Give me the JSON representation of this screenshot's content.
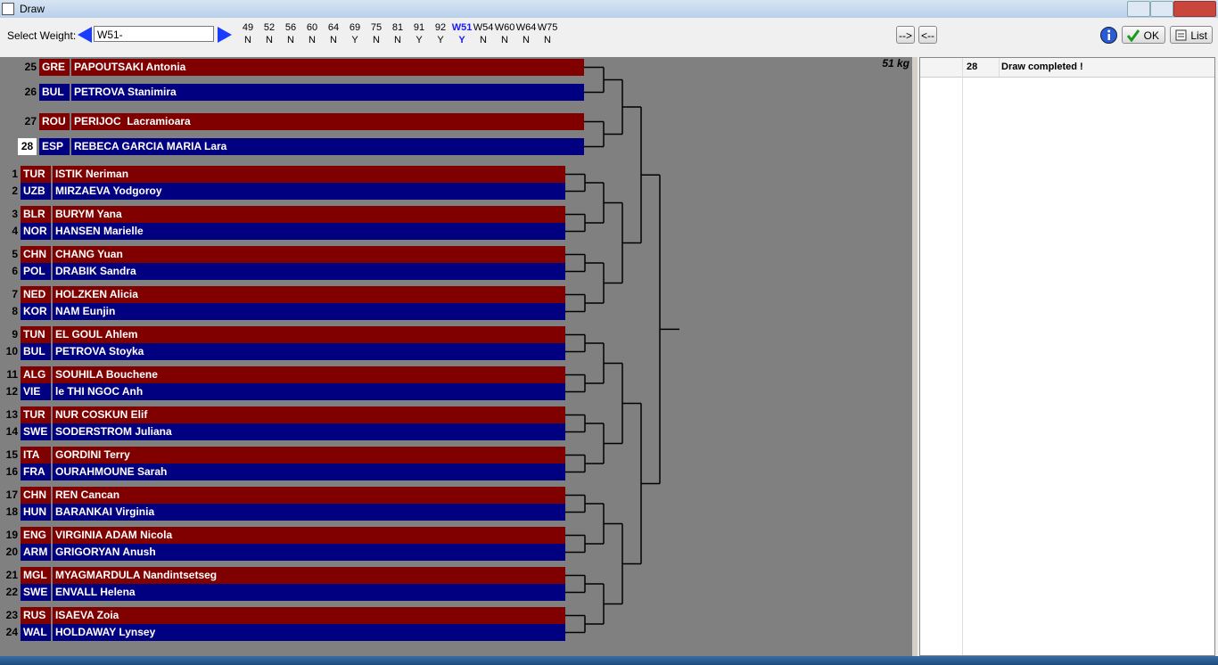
{
  "window": {
    "title": "Draw"
  },
  "toolbar": {
    "select_label": "Select Weight:",
    "select_value": "W51-",
    "weights": [
      {
        "label": "49",
        "flag": "N"
      },
      {
        "label": "52",
        "flag": "N"
      },
      {
        "label": "56",
        "flag": "N"
      },
      {
        "label": "60",
        "flag": "N"
      },
      {
        "label": "64",
        "flag": "N"
      },
      {
        "label": "69",
        "flag": "Y"
      },
      {
        "label": "75",
        "flag": "N"
      },
      {
        "label": "81",
        "flag": "N"
      },
      {
        "label": "91",
        "flag": "Y"
      },
      {
        "label": "92",
        "flag": "Y"
      },
      {
        "label": "W51",
        "flag": "Y"
      },
      {
        "label": "W54",
        "flag": "N"
      },
      {
        "label": "W60",
        "flag": "N"
      },
      {
        "label": "W64",
        "flag": "N"
      },
      {
        "label": "W75",
        "flag": "N"
      }
    ],
    "selected_weight": 10,
    "buttons": {
      "next": "-->",
      "prev": "<--",
      "ok": "OK",
      "list": "List"
    }
  },
  "draw": {
    "weight_label": "51 kg",
    "prelims": [
      {
        "num": 25,
        "country": "GRE",
        "name": "PAPOUTSAKI Antonia"
      },
      {
        "num": 26,
        "country": "BUL",
        "name": "PETROVA Stanimira"
      },
      {
        "num": 27,
        "country": "ROU",
        "name": "PERIJOC  Lacramioara"
      },
      {
        "num": 28,
        "country": "ESP",
        "name": "REBECA GARCIA MARIA Lara"
      }
    ],
    "entries": [
      {
        "num": 1,
        "country": "TUR",
        "name": "ISTIK Neriman"
      },
      {
        "num": 2,
        "country": "UZB",
        "name": "MIRZAEVA Yodgoroy"
      },
      {
        "num": 3,
        "country": "BLR",
        "name": "BURYM Yana"
      },
      {
        "num": 4,
        "country": "NOR",
        "name": "HANSEN Marielle"
      },
      {
        "num": 5,
        "country": "CHN",
        "name": "CHANG Yuan"
      },
      {
        "num": 6,
        "country": "POL",
        "name": "DRABIK Sandra"
      },
      {
        "num": 7,
        "country": "NED",
        "name": "HOLZKEN Alicia"
      },
      {
        "num": 8,
        "country": "KOR",
        "name": "NAM Eunjin"
      },
      {
        "num": 9,
        "country": "TUN",
        "name": "EL GOUL Ahlem"
      },
      {
        "num": 10,
        "country": "BUL",
        "name": "PETROVA Stoyka"
      },
      {
        "num": 11,
        "country": "ALG",
        "name": "SOUHILA Bouchene"
      },
      {
        "num": 12,
        "country": "VIE",
        "name": "le THI NGOC Anh"
      },
      {
        "num": 13,
        "country": "TUR",
        "name": "NUR COSKUN Elif"
      },
      {
        "num": 14,
        "country": "SWE",
        "name": "SODERSTROM Juliana"
      },
      {
        "num": 15,
        "country": "ITA",
        "name": "GORDINI Terry"
      },
      {
        "num": 16,
        "country": "FRA",
        "name": "OURAHMOUNE Sarah"
      },
      {
        "num": 17,
        "country": "CHN",
        "name": "REN Cancan"
      },
      {
        "num": 18,
        "country": "HUN",
        "name": "BARANKAI Virginia"
      },
      {
        "num": 19,
        "country": "ENG",
        "name": "VIRGINIA ADAM Nicola"
      },
      {
        "num": 20,
        "country": "ARM",
        "name": "GRIGORYAN Anush"
      },
      {
        "num": 21,
        "country": "MGL",
        "name": "MYAGMARDULA Nandintsetseg"
      },
      {
        "num": 22,
        "country": "SWE",
        "name": "ENVALL Helena"
      },
      {
        "num": 23,
        "country": "RUS",
        "name": "ISAEVA Zoia"
      },
      {
        "num": 24,
        "country": "WAL",
        "name": "HOLDAWAY Lynsey"
      }
    ]
  },
  "log": {
    "rows": [
      {
        "count": 28,
        "message": "Draw completed !"
      }
    ]
  }
}
